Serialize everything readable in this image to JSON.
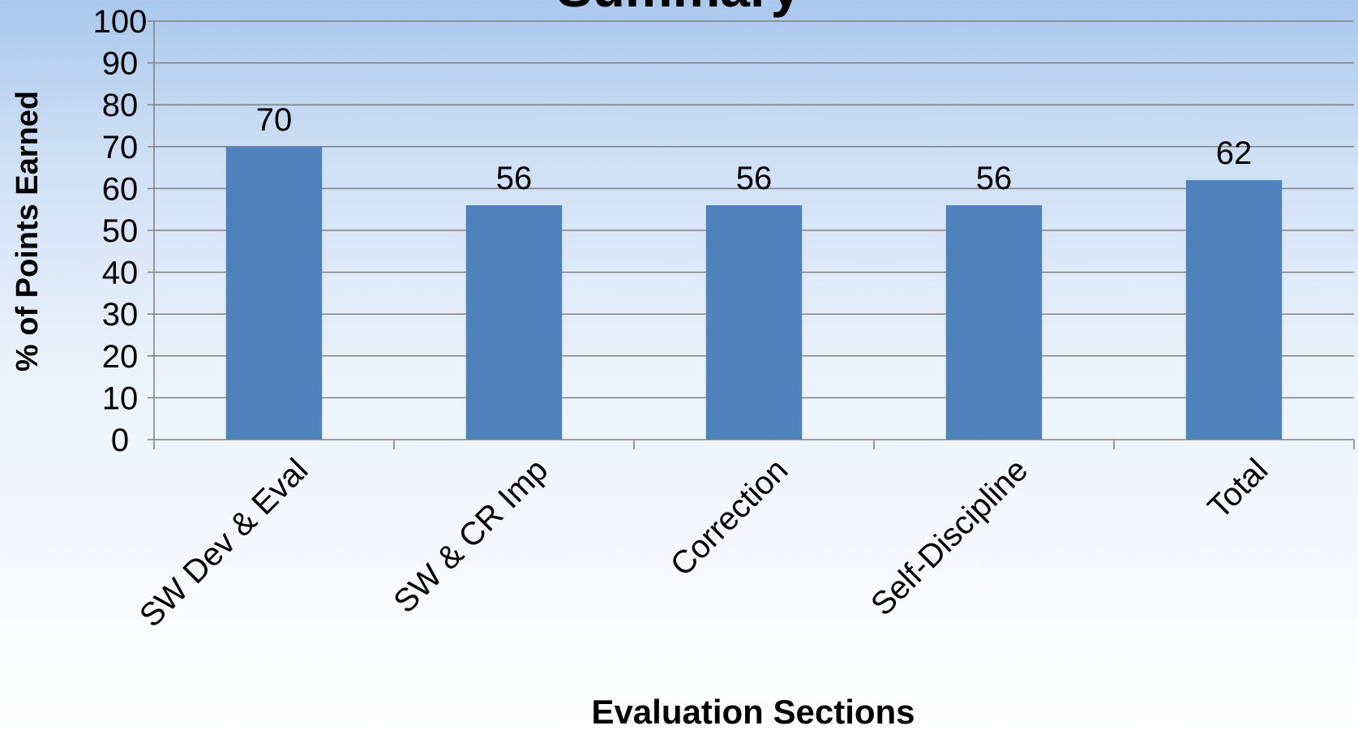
{
  "chart_data": {
    "type": "bar",
    "title": "Summary",
    "xlabel": "Evaluation Sections",
    "ylabel": "% of Points Earned",
    "categories": [
      "SW Dev & Eval",
      "SW & CR Imp",
      "Correction",
      "Self-Discipline",
      "Total"
    ],
    "values": [
      70,
      56,
      56,
      56,
      62
    ],
    "data_labels": [
      "70",
      "56",
      "56",
      "56",
      "62"
    ],
    "ylim": [
      0,
      100
    ],
    "yticks": [
      0,
      10,
      20,
      30,
      40,
      50,
      60,
      70,
      80,
      90,
      100
    ],
    "ytick_labels": [
      "0",
      "10",
      "20",
      "30",
      "40",
      "50",
      "60",
      "70",
      "80",
      "90",
      "100"
    ],
    "grid": true,
    "legend": "none",
    "colors": {
      "bar": "#4f81bd",
      "grid": "#7f7f7f",
      "text": "#000000"
    }
  }
}
